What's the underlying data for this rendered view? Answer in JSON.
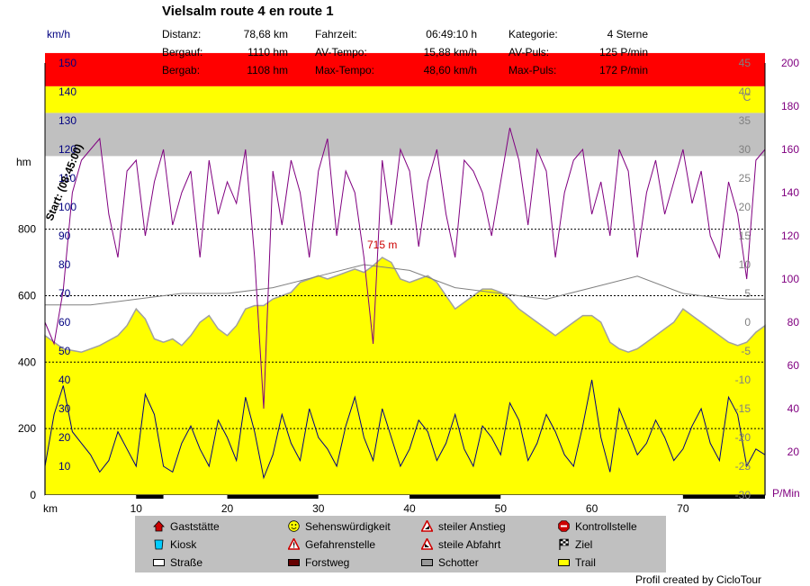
{
  "title": "Vielsalm route 4 en route 1",
  "stats": [
    {
      "label": "Distanz:",
      "value": "78,68 km"
    },
    {
      "label": "Bergauf:",
      "value": "1110 hm"
    },
    {
      "label": "Bergab:",
      "value": "1108 hm"
    },
    {
      "label": "Fahrzeit:",
      "value": "06:49:10 h"
    },
    {
      "label": "AV-Tempo:",
      "value": "15,88 km/h"
    },
    {
      "label": "Max-Tempo:",
      "value": "48,60 km/h"
    },
    {
      "label": "Kategorie:",
      "value": "4 Sterne"
    },
    {
      "label": "AV-Puls:",
      "value": "125 P/min"
    },
    {
      "label": "Max-Puls:",
      "value": "172 P/min"
    }
  ],
  "legend": [
    {
      "label": "Gaststätte",
      "icon": "house-icon",
      "color": "#cc0000"
    },
    {
      "label": "Sehenswürdigkeit",
      "icon": "smiley-icon",
      "color": "#ffff00"
    },
    {
      "label": "steiler Anstieg",
      "icon": "warning-up-icon",
      "color": "#cc0000"
    },
    {
      "label": "Kontrollstelle",
      "icon": "stop-icon",
      "color": "#cc0000"
    },
    {
      "label": "Kiosk",
      "icon": "kiosk-icon",
      "color": "#00ccff"
    },
    {
      "label": "Gefahrenstelle",
      "icon": "warning-icon",
      "color": "#cc0000"
    },
    {
      "label": "steile Abfahrt",
      "icon": "warning-down-icon",
      "color": "#cc0000"
    },
    {
      "label": "Ziel",
      "icon": "checkered-flag-icon",
      "color": "#000000"
    },
    {
      "label": "Straße",
      "icon": "road-swatch-icon",
      "color": "#ffffff"
    },
    {
      "label": "Forstweg",
      "icon": "forest-road-swatch-icon",
      "color": "#660000"
    },
    {
      "label": "Schotter",
      "icon": "gravel-swatch-icon",
      "color": "#999999"
    },
    {
      "label": "Trail",
      "icon": "trail-swatch-icon",
      "color": "#ffff00"
    }
  ],
  "credit": "Profil created by CicloTour",
  "chart_data": {
    "type": "area",
    "start_label": "Start: (08:45:00)",
    "peak_label": "715 m",
    "x_axis": {
      "unit": "km",
      "range": [
        0,
        79
      ],
      "ticks": [
        10,
        20,
        30,
        40,
        50,
        60,
        70
      ]
    },
    "surface_band": [
      {
        "from": 0,
        "to": 10,
        "color": "#ffffff"
      },
      {
        "from": 10,
        "to": 13,
        "color": "#000000"
      },
      {
        "from": 13,
        "to": 20,
        "color": "#ffffff"
      },
      {
        "from": 20,
        "to": 30,
        "color": "#000000"
      },
      {
        "from": 30,
        "to": 40,
        "color": "#ffffff"
      },
      {
        "from": 40,
        "to": 50,
        "color": "#000000"
      },
      {
        "from": 50,
        "to": 70,
        "color": "#ffffff"
      },
      {
        "from": 70,
        "to": 79,
        "color": "#000000"
      }
    ],
    "elevation_axis": {
      "unit": "hm",
      "range": [
        0,
        1300
      ],
      "ticks": [
        0,
        200,
        400,
        600,
        800
      ]
    },
    "speed_axis": {
      "unit": "km/h",
      "range": [
        0,
        150
      ],
      "ticks": [
        10,
        20,
        30,
        40,
        50,
        60,
        70,
        80,
        90,
        100,
        110,
        120,
        130,
        140,
        150
      ]
    },
    "pulse_axis": {
      "unit": "P/Min",
      "range": [
        0,
        200
      ],
      "ticks": [
        20,
        40,
        60,
        80,
        100,
        120,
        140,
        160,
        180,
        200
      ]
    },
    "temp_axis": {
      "unit": "C",
      "ticks": [
        -30,
        -25,
        -20,
        -15,
        -10,
        -5,
        0,
        5,
        10,
        15,
        20,
        25,
        30,
        35,
        40,
        45
      ]
    },
    "zones": [
      {
        "from": 1020,
        "to": 1150,
        "color": "#c0c0c0"
      },
      {
        "from": 1150,
        "to": 1230,
        "color": "#ffff00"
      },
      {
        "from": 1230,
        "to": 1330,
        "color": "#ff0000"
      }
    ],
    "series": [
      {
        "name": "Höhe",
        "color": "#ffff00",
        "x": [
          0,
          2,
          4,
          6,
          8,
          9,
          10,
          11,
          12,
          13,
          14,
          15,
          16,
          17,
          18,
          19,
          20,
          21,
          22,
          23,
          24,
          25,
          26,
          27,
          28,
          29,
          30,
          31,
          32,
          33,
          34,
          35,
          36,
          37,
          38,
          39,
          40,
          41,
          42,
          43,
          44,
          45,
          46,
          47,
          48,
          49,
          50,
          51,
          52,
          53,
          54,
          55,
          56,
          57,
          58,
          59,
          60,
          61,
          62,
          63,
          64,
          65,
          66,
          67,
          68,
          69,
          70,
          71,
          72,
          73,
          74,
          75,
          76,
          77,
          78,
          79
        ],
        "values": [
          480,
          440,
          430,
          450,
          480,
          510,
          560,
          530,
          470,
          460,
          470,
          450,
          480,
          520,
          540,
          500,
          480,
          510,
          560,
          570,
          570,
          590,
          600,
          610,
          640,
          650,
          660,
          650,
          660,
          670,
          680,
          670,
          690,
          715,
          700,
          650,
          640,
          650,
          660,
          640,
          600,
          560,
          580,
          600,
          620,
          620,
          610,
          590,
          560,
          540,
          520,
          500,
          480,
          500,
          520,
          540,
          540,
          520,
          460,
          440,
          430,
          440,
          460,
          480,
          500,
          520,
          560,
          540,
          520,
          500,
          480,
          460,
          450,
          460,
          490,
          510
        ]
      },
      {
        "name": "Geschwindigkeit",
        "color": "#000080",
        "x": [
          0,
          1,
          2,
          3,
          4,
          5,
          6,
          7,
          8,
          9,
          10,
          11,
          12,
          13,
          14,
          15,
          16,
          17,
          18,
          19,
          20,
          21,
          22,
          23,
          24,
          25,
          26,
          27,
          28,
          29,
          30,
          31,
          32,
          33,
          34,
          35,
          36,
          37,
          38,
          39,
          40,
          41,
          42,
          43,
          44,
          45,
          46,
          47,
          48,
          49,
          50,
          51,
          52,
          53,
          54,
          55,
          56,
          57,
          58,
          59,
          60,
          61,
          62,
          63,
          64,
          65,
          66,
          67,
          68,
          69,
          70,
          71,
          72,
          73,
          74,
          75,
          76,
          77,
          78,
          79
        ],
        "values": [
          10,
          28,
          38,
          22,
          18,
          14,
          8,
          12,
          22,
          16,
          10,
          35,
          28,
          10,
          8,
          18,
          24,
          16,
          10,
          26,
          20,
          12,
          34,
          22,
          6,
          14,
          28,
          18,
          12,
          30,
          20,
          16,
          10,
          24,
          34,
          20,
          12,
          30,
          20,
          10,
          16,
          26,
          22,
          12,
          18,
          28,
          16,
          10,
          24,
          20,
          14,
          32,
          26,
          12,
          18,
          28,
          22,
          14,
          10,
          24,
          40,
          20,
          8,
          30,
          22,
          14,
          18,
          26,
          20,
          12,
          16,
          24,
          30,
          18,
          12,
          34,
          28,
          10,
          16,
          14
        ]
      },
      {
        "name": "Puls",
        "color": "#800080",
        "x": [
          0,
          1,
          2,
          3,
          4,
          5,
          6,
          7,
          8,
          9,
          10,
          11,
          12,
          13,
          14,
          15,
          16,
          17,
          18,
          19,
          20,
          21,
          22,
          23,
          24,
          25,
          26,
          27,
          28,
          29,
          30,
          31,
          32,
          33,
          34,
          35,
          36,
          37,
          38,
          39,
          40,
          41,
          42,
          43,
          44,
          45,
          46,
          47,
          48,
          49,
          50,
          51,
          52,
          53,
          54,
          55,
          56,
          57,
          58,
          59,
          60,
          61,
          62,
          63,
          64,
          65,
          66,
          67,
          68,
          69,
          70,
          71,
          72,
          73,
          74,
          75,
          76,
          77,
          78,
          79
        ],
        "values": [
          80,
          70,
          95,
          140,
          155,
          160,
          165,
          130,
          110,
          150,
          155,
          120,
          145,
          160,
          125,
          140,
          150,
          110,
          155,
          130,
          145,
          135,
          160,
          110,
          40,
          150,
          125,
          155,
          140,
          110,
          150,
          165,
          120,
          150,
          140,
          110,
          70,
          155,
          125,
          160,
          150,
          115,
          145,
          160,
          130,
          110,
          155,
          150,
          140,
          120,
          145,
          170,
          155,
          125,
          160,
          150,
          110,
          140,
          155,
          160,
          130,
          145,
          120,
          160,
          150,
          110,
          140,
          155,
          130,
          145,
          160,
          135,
          150,
          120,
          110,
          145,
          130,
          100,
          155,
          160
        ]
      },
      {
        "name": "Temperatur",
        "color": "#808080",
        "x": [
          0,
          5,
          10,
          15,
          20,
          25,
          30,
          35,
          40,
          45,
          50,
          55,
          60,
          65,
          70,
          75,
          79
        ],
        "values": [
          3,
          3,
          4,
          5,
          5,
          6,
          8,
          10,
          9,
          6,
          5,
          4,
          6,
          8,
          5,
          4,
          4
        ]
      }
    ]
  }
}
